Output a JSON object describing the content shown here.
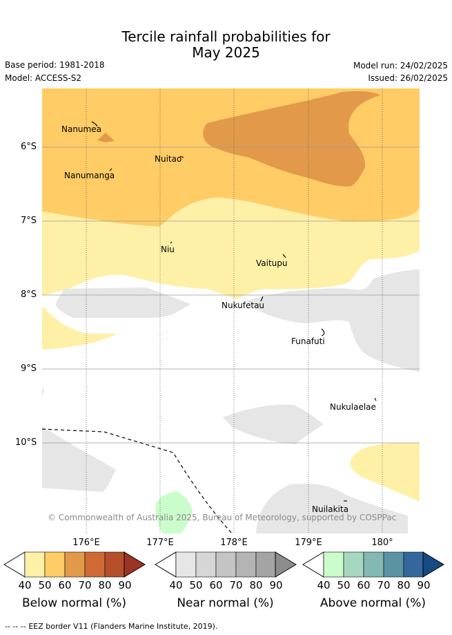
{
  "title": {
    "line1": "Tercile rainfall probabilities for",
    "line2": "May 2025"
  },
  "meta": {
    "base_period": "Base period: 1981-2018",
    "model": "Model: ACCESS-S2",
    "model_run": "Model run: 24/02/2025",
    "issued": "Issued: 26/02/2025"
  },
  "axes": {
    "lat_labels": [
      "6°S",
      "7°S",
      "8°S",
      "9°S",
      "10°S"
    ],
    "lon_labels": [
      "176°E",
      "177°E",
      "178°E",
      "179°E",
      "180°"
    ]
  },
  "places": {
    "nanumea": "Nanumea",
    "nuitao": "Nuitao",
    "nanumanga": "Nanumanga",
    "niu": "Niu",
    "vaitupu": "Vaitupu",
    "nukufetau": "Nukufetau",
    "funafuti": "Funafuti",
    "nukulaelae": "Nukulaelae",
    "nuilakita": "Nuilakita"
  },
  "copyright": "© Commonwealth of Australia 2025, Bureau of Meteorology, supported by COSPPac",
  "colorbars": {
    "ticks": [
      "40",
      "50",
      "60",
      "70",
      "80",
      "90"
    ],
    "below": {
      "label": "Below normal (%)",
      "colors": [
        "#fff0a8",
        "#ffcc66",
        "#e29a4a",
        "#d06a35",
        "#b54e2a",
        "#9c3324"
      ]
    },
    "near": {
      "label": "Near normal (%)",
      "colors": [
        "#e6e6e6",
        "#d6d6d6",
        "#c4c4c4",
        "#b4b4b4",
        "#a4a4a4",
        "#8c8c8c"
      ]
    },
    "above": {
      "label": "Above normal (%)",
      "colors": [
        "#cbfccb",
        "#a6d8bf",
        "#84b9b3",
        "#5a94a4",
        "#34679b",
        "#164a82"
      ]
    }
  },
  "legend": {
    "eez_symbol": "-- -- --",
    "eez_label": "EEZ border V11 (Flanders Marine Institute, 2019)."
  }
}
